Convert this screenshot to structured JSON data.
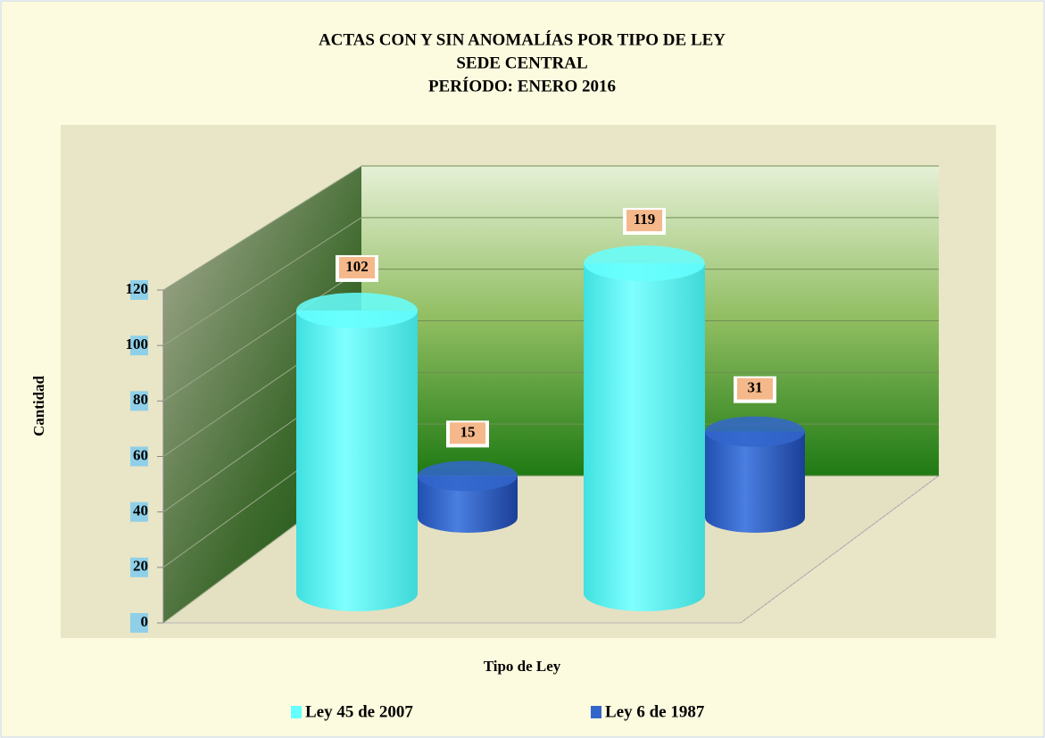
{
  "chart_data": {
    "type": "bar3d",
    "title": [
      "ACTAS CON Y SIN ANOMALÍAS POR TIPO DE LEY",
      "SEDE CENTRAL",
      "PERÍODO: ENERO 2016"
    ],
    "y_label": "Cantidad",
    "x_label": "Tipo de Ley",
    "categories": [
      null,
      null
    ],
    "series": [
      {
        "name": "Ley 45 de 2007",
        "color": "#66ffff",
        "values": [
          102,
          119
        ]
      },
      {
        "name": "Ley 6 de 1987",
        "color": "#3366cc",
        "values": [
          15,
          31
        ]
      }
    ],
    "ylim": [
      0,
      120
    ],
    "yticks": [
      0,
      20,
      40,
      60,
      80,
      100,
      120
    ],
    "grid": true
  }
}
